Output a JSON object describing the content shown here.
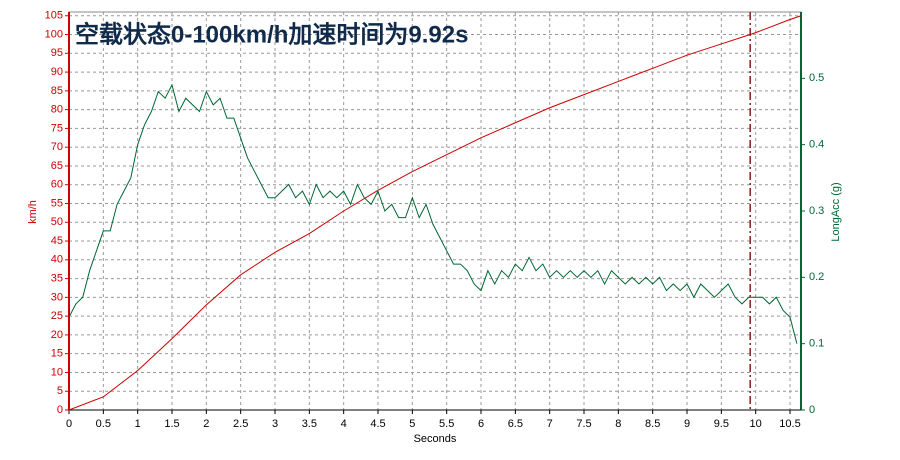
{
  "chart_data": {
    "type": "line",
    "title": "空载状态0-100km/h加速时间为9.92s",
    "x_label": "Seconds",
    "y_label": "km/h",
    "y2_label": "LongAcc (g)",
    "xlim": [
      0,
      10.66
    ],
    "ylim": [
      0,
      106
    ],
    "y2lim": [
      0,
      0.6
    ],
    "xticks": [
      0,
      0.5,
      1,
      1.5,
      2,
      2.5,
      3,
      3.5,
      4,
      4.5,
      5,
      5.5,
      6,
      6.5,
      7,
      7.5,
      8,
      8.5,
      9,
      9.5,
      10,
      10.5
    ],
    "yticks": [
      0,
      5,
      10,
      15,
      20,
      25,
      30,
      35,
      40,
      45,
      50,
      55,
      60,
      65,
      70,
      75,
      80,
      85,
      90,
      95,
      100,
      105
    ],
    "y2ticks": [
      0,
      0.1,
      0.2,
      0.3,
      0.4,
      0.5
    ],
    "grid": true,
    "cursor_x": 9.92,
    "cursor_color": "#8b1a1a",
    "series": [
      {
        "color": "#cc0000",
        "axis": "y",
        "x": [
          0,
          0.5,
          1,
          1.5,
          2,
          2.5,
          3,
          3.5,
          4,
          4.5,
          5,
          5.5,
          6,
          6.5,
          7,
          7.5,
          8,
          8.5,
          9,
          9.5,
          9.92,
          10,
          10.5,
          10.66
        ],
        "values": [
          0,
          3.5,
          10.5,
          19,
          28,
          36,
          42,
          47,
          53,
          58.5,
          63.5,
          68,
          72.5,
          76.5,
          80.5,
          84,
          87.5,
          91,
          94.5,
          97.5,
          100,
          100.5,
          104,
          105
        ]
      },
      {
        "color": "#006633",
        "axis": "y2",
        "x": [
          0,
          0.1,
          0.2,
          0.3,
          0.4,
          0.5,
          0.6,
          0.7,
          0.8,
          0.9,
          1,
          1.1,
          1.2,
          1.3,
          1.4,
          1.5,
          1.6,
          1.7,
          1.8,
          1.9,
          2,
          2.1,
          2.2,
          2.3,
          2.4,
          2.5,
          2.6,
          2.7,
          2.8,
          2.9,
          3,
          3.1,
          3.2,
          3.3,
          3.4,
          3.5,
          3.6,
          3.7,
          3.8,
          3.9,
          4,
          4.1,
          4.2,
          4.3,
          4.4,
          4.5,
          4.6,
          4.7,
          4.8,
          4.9,
          5,
          5.1,
          5.2,
          5.3,
          5.4,
          5.5,
          5.6,
          5.7,
          5.8,
          5.9,
          6,
          6.1,
          6.2,
          6.3,
          6.4,
          6.5,
          6.6,
          6.7,
          6.8,
          6.9,
          7,
          7.1,
          7.2,
          7.3,
          7.4,
          7.5,
          7.6,
          7.7,
          7.8,
          7.9,
          8,
          8.1,
          8.2,
          8.3,
          8.4,
          8.5,
          8.6,
          8.7,
          8.8,
          8.9,
          9,
          9.1,
          9.2,
          9.3,
          9.4,
          9.5,
          9.6,
          9.7,
          9.8,
          9.9,
          10,
          10.1,
          10.2,
          10.3,
          10.4,
          10.5,
          10.6
        ],
        "values": [
          0.14,
          0.16,
          0.17,
          0.21,
          0.24,
          0.27,
          0.27,
          0.31,
          0.33,
          0.35,
          0.4,
          0.43,
          0.45,
          0.48,
          0.47,
          0.49,
          0.45,
          0.47,
          0.46,
          0.45,
          0.48,
          0.46,
          0.47,
          0.44,
          0.44,
          0.41,
          0.38,
          0.36,
          0.34,
          0.32,
          0.32,
          0.33,
          0.34,
          0.32,
          0.33,
          0.31,
          0.34,
          0.32,
          0.33,
          0.32,
          0.33,
          0.31,
          0.34,
          0.32,
          0.31,
          0.33,
          0.3,
          0.31,
          0.29,
          0.29,
          0.32,
          0.29,
          0.31,
          0.28,
          0.26,
          0.24,
          0.22,
          0.22,
          0.21,
          0.19,
          0.18,
          0.21,
          0.19,
          0.21,
          0.2,
          0.22,
          0.21,
          0.23,
          0.21,
          0.22,
          0.2,
          0.21,
          0.2,
          0.21,
          0.2,
          0.21,
          0.2,
          0.21,
          0.19,
          0.21,
          0.2,
          0.19,
          0.2,
          0.19,
          0.2,
          0.19,
          0.2,
          0.18,
          0.19,
          0.18,
          0.19,
          0.17,
          0.19,
          0.18,
          0.17,
          0.18,
          0.19,
          0.17,
          0.16,
          0.17,
          0.17,
          0.17,
          0.16,
          0.17,
          0.15,
          0.14,
          0.1
        ]
      }
    ]
  }
}
